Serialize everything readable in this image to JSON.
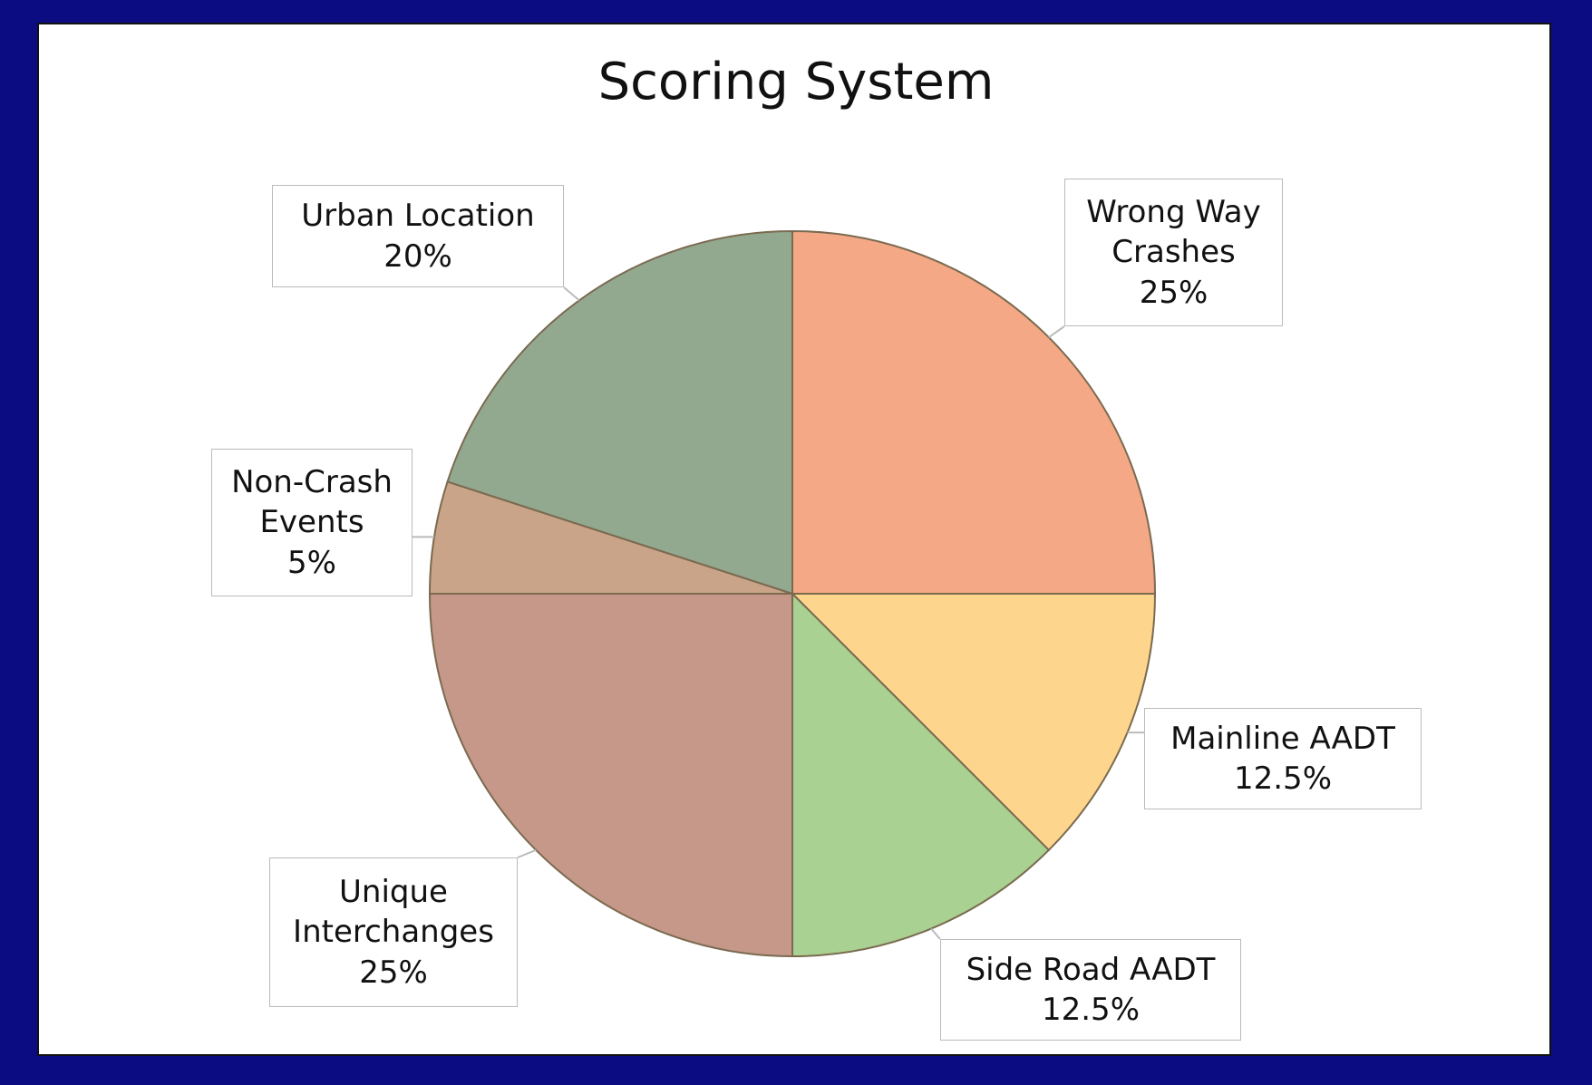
{
  "chart_data": {
    "type": "pie",
    "title": "Scoring System",
    "categories": [
      "Wrong Way Crashes",
      "Mainline AADT",
      "Side Road AADT",
      "Unique Interchanges",
      "Non-Crash Events",
      "Urban Location"
    ],
    "values": [
      25,
      12.5,
      12.5,
      25,
      5,
      20
    ],
    "value_labels": [
      "25%",
      "12.5%",
      "12.5%",
      "25%",
      "5%",
      "20%"
    ],
    "colors": [
      "#f4a886",
      "#fdd58c",
      "#a9d191",
      "#c6988a",
      "#caa488",
      "#93a98f"
    ]
  }
}
